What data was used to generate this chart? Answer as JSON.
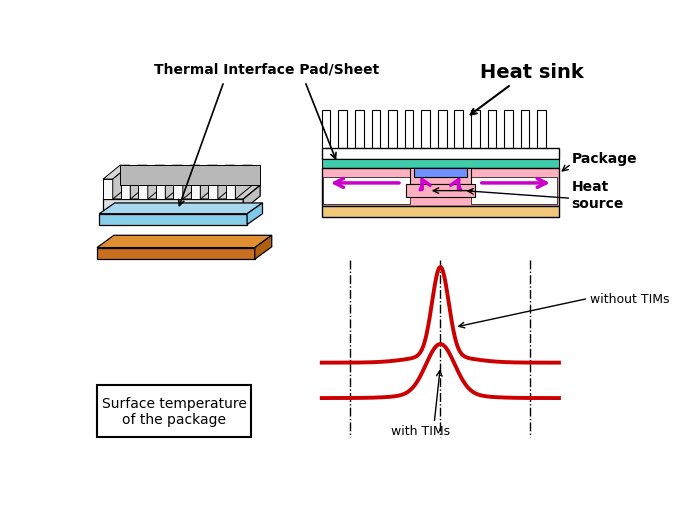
{
  "bg_color": "#ffffff",
  "title_tip": "Thermal Interface Pad/Sheet",
  "title_heatsink": "Heat sink",
  "label_package": "Package",
  "label_heat_source": "Heat\nsource",
  "label_surface_temp": "Surface temperature\nof the package",
  "label_without_tims": "without TIMs",
  "label_with_tims": "with TIMs",
  "tpad_color": "#87ceeb",
  "pcb_color": "#c87020",
  "pink_body": "#ffb0c0",
  "cyan_tpad": "#40ccaa",
  "blue_chip": "#7090ff",
  "tan_base": "#f0c878",
  "arrow_color": "#cc00cc",
  "curve_color": "#cc0000",
  "curve_lw": 2.8,
  "dashdot_color": "#000000"
}
